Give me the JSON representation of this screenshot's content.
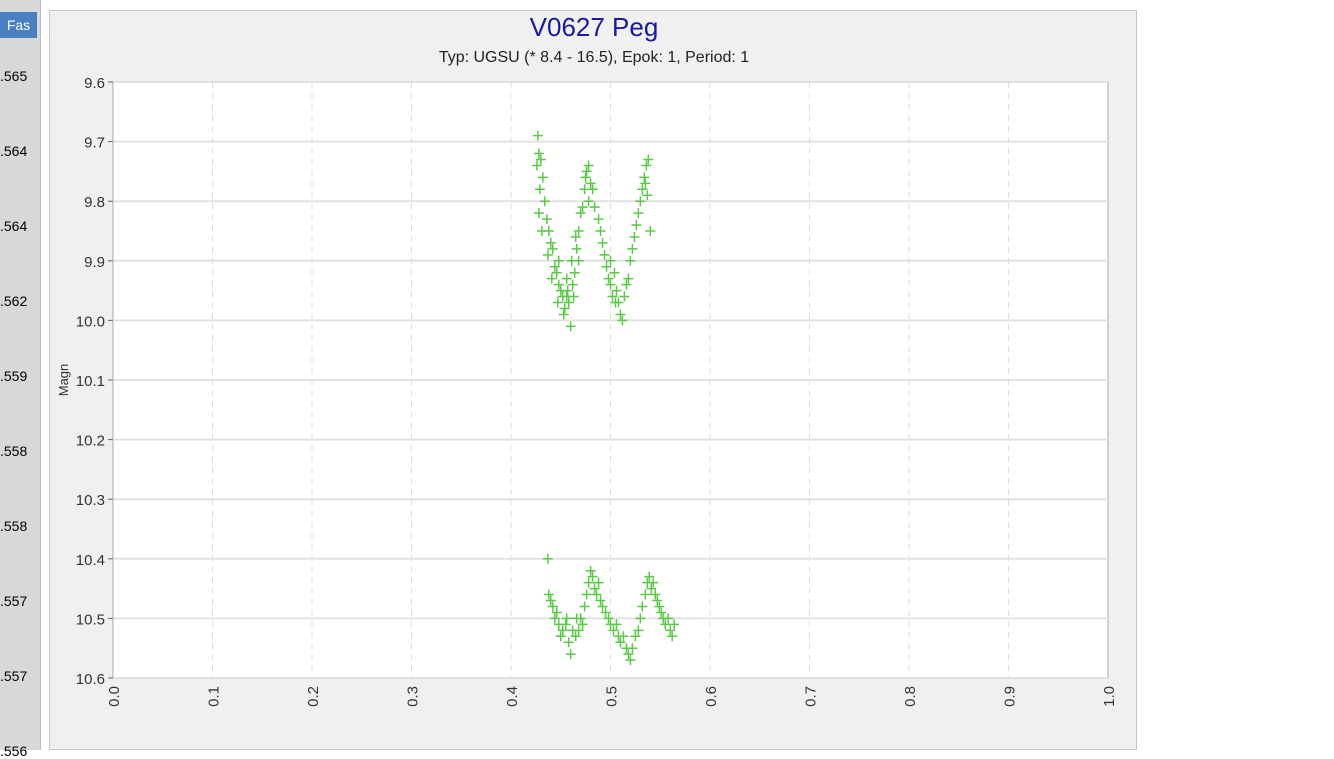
{
  "left_column": {
    "header": "Fas",
    "values": [
      ".565",
      ".564",
      ".564",
      ".562",
      ".559",
      ".558",
      ".558",
      ".557",
      ".557",
      ".556"
    ]
  },
  "chart_data": {
    "type": "scatter",
    "title": "V0627 Peg",
    "subtitle": "Typ: UGSU (* 8.4 - 16.5), Epok: 1, Period: 1",
    "xlabel": "",
    "ylabel": "Magn",
    "xlim": [
      0,
      1
    ],
    "ylim": [
      9.6,
      10.6
    ],
    "y_inverted": true,
    "xticks": [
      "0.0",
      "0.1",
      "0.2",
      "0.3",
      "0.4",
      "0.5",
      "0.6",
      "0.7",
      "0.8",
      "0.9",
      "1.0"
    ],
    "yticks": [
      "9.6",
      "9.7",
      "9.8",
      "9.9",
      "10.0",
      "10.1",
      "10.2",
      "10.3",
      "10.4",
      "10.5",
      "10.6"
    ],
    "grid": true,
    "marker": "plus",
    "color": "#5cc84a",
    "points": [
      [
        0.427,
        9.69
      ],
      [
        0.428,
        9.72
      ],
      [
        0.426,
        9.74
      ],
      [
        0.43,
        9.73
      ],
      [
        0.432,
        9.76
      ],
      [
        0.429,
        9.78
      ],
      [
        0.434,
        9.8
      ],
      [
        0.428,
        9.82
      ],
      [
        0.436,
        9.83
      ],
      [
        0.431,
        9.85
      ],
      [
        0.438,
        9.85
      ],
      [
        0.44,
        9.87
      ],
      [
        0.437,
        9.89
      ],
      [
        0.442,
        9.88
      ],
      [
        0.444,
        9.91
      ],
      [
        0.441,
        9.93
      ],
      [
        0.446,
        9.92
      ],
      [
        0.448,
        9.94
      ],
      [
        0.45,
        9.95
      ],
      [
        0.447,
        9.97
      ],
      [
        0.452,
        9.96
      ],
      [
        0.454,
        9.98
      ],
      [
        0.456,
        9.96
      ],
      [
        0.453,
        9.99
      ],
      [
        0.458,
        9.97
      ],
      [
        0.46,
        10.01
      ],
      [
        0.457,
        9.95
      ],
      [
        0.462,
        9.94
      ],
      [
        0.464,
        9.92
      ],
      [
        0.461,
        9.9
      ],
      [
        0.466,
        9.88
      ],
      [
        0.468,
        9.85
      ],
      [
        0.465,
        9.86
      ],
      [
        0.47,
        9.82
      ],
      [
        0.472,
        9.81
      ],
      [
        0.474,
        9.78
      ],
      [
        0.476,
        9.75
      ],
      [
        0.478,
        9.74
      ],
      [
        0.475,
        9.76
      ],
      [
        0.48,
        9.77
      ],
      [
        0.482,
        9.78
      ],
      [
        0.478,
        9.8
      ],
      [
        0.484,
        9.81
      ],
      [
        0.488,
        9.83
      ],
      [
        0.49,
        9.85
      ],
      [
        0.492,
        9.87
      ],
      [
        0.494,
        9.89
      ],
      [
        0.496,
        9.91
      ],
      [
        0.498,
        9.93
      ],
      [
        0.5,
        9.94
      ],
      [
        0.502,
        9.96
      ],
      [
        0.504,
        9.92
      ],
      [
        0.506,
        9.95
      ],
      [
        0.508,
        9.97
      ],
      [
        0.51,
        9.99
      ],
      [
        0.512,
        10.0
      ],
      [
        0.514,
        9.96
      ],
      [
        0.516,
        9.94
      ],
      [
        0.518,
        9.93
      ],
      [
        0.52,
        9.9
      ],
      [
        0.522,
        9.88
      ],
      [
        0.524,
        9.86
      ],
      [
        0.526,
        9.84
      ],
      [
        0.528,
        9.82
      ],
      [
        0.53,
        9.8
      ],
      [
        0.532,
        9.78
      ],
      [
        0.534,
        9.76
      ],
      [
        0.536,
        9.74
      ],
      [
        0.538,
        9.73
      ],
      [
        0.535,
        9.77
      ],
      [
        0.537,
        9.79
      ],
      [
        0.54,
        9.85
      ],
      [
        0.456,
        9.93
      ],
      [
        0.463,
        9.96
      ],
      [
        0.5,
        9.9
      ],
      [
        0.505,
        9.97
      ],
      [
        0.448,
        9.9
      ],
      [
        0.468,
        9.9
      ],
      [
        0.437,
        10.4
      ],
      [
        0.438,
        10.46
      ],
      [
        0.44,
        10.47
      ],
      [
        0.442,
        10.48
      ],
      [
        0.444,
        10.5
      ],
      [
        0.446,
        10.49
      ],
      [
        0.448,
        10.51
      ],
      [
        0.45,
        10.53
      ],
      [
        0.452,
        10.52
      ],
      [
        0.455,
        10.51
      ],
      [
        0.458,
        10.54
      ],
      [
        0.46,
        10.56
      ],
      [
        0.462,
        10.52
      ],
      [
        0.465,
        10.53
      ],
      [
        0.468,
        10.52
      ],
      [
        0.47,
        10.5
      ],
      [
        0.472,
        10.51
      ],
      [
        0.474,
        10.48
      ],
      [
        0.476,
        10.46
      ],
      [
        0.478,
        10.44
      ],
      [
        0.48,
        10.42
      ],
      [
        0.482,
        10.43
      ],
      [
        0.484,
        10.45
      ],
      [
        0.486,
        10.46
      ],
      [
        0.488,
        10.44
      ],
      [
        0.49,
        10.47
      ],
      [
        0.492,
        10.48
      ],
      [
        0.495,
        10.49
      ],
      [
        0.498,
        10.5
      ],
      [
        0.5,
        10.51
      ],
      [
        0.503,
        10.52
      ],
      [
        0.506,
        10.51
      ],
      [
        0.508,
        10.53
      ],
      [
        0.51,
        10.54
      ],
      [
        0.513,
        10.53
      ],
      [
        0.516,
        10.55
      ],
      [
        0.518,
        10.56
      ],
      [
        0.52,
        10.57
      ],
      [
        0.522,
        10.55
      ],
      [
        0.525,
        10.53
      ],
      [
        0.528,
        10.52
      ],
      [
        0.53,
        10.5
      ],
      [
        0.532,
        10.48
      ],
      [
        0.535,
        10.46
      ],
      [
        0.537,
        10.44
      ],
      [
        0.539,
        10.43
      ],
      [
        0.541,
        10.45
      ],
      [
        0.543,
        10.44
      ],
      [
        0.545,
        10.46
      ],
      [
        0.547,
        10.47
      ],
      [
        0.549,
        10.48
      ],
      [
        0.551,
        10.49
      ],
      [
        0.553,
        10.5
      ],
      [
        0.555,
        10.51
      ],
      [
        0.558,
        10.5
      ],
      [
        0.56,
        10.52
      ],
      [
        0.562,
        10.53
      ],
      [
        0.564,
        10.51
      ],
      [
        0.466,
        10.5
      ],
      [
        0.456,
        10.5
      ]
    ]
  }
}
